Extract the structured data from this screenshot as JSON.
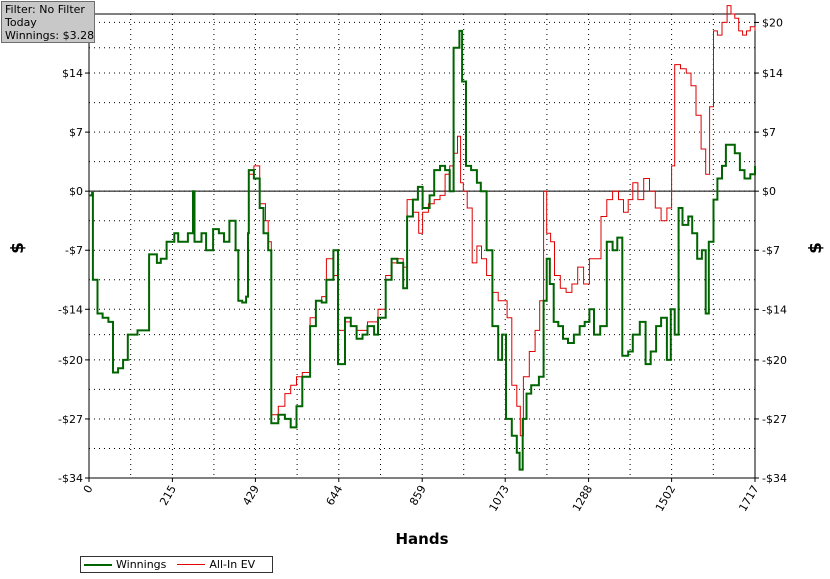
{
  "filter_box": {
    "line1": "Filter: No Filter",
    "line2": "Today",
    "line3": "Winnings: $3.28"
  },
  "colors": {
    "winnings": "#006400",
    "allin_ev": "#e00000",
    "grid": "#000000",
    "zero_line": "#000000"
  },
  "chart_data": {
    "type": "line",
    "xlabel": "Hands",
    "ylabel": "$",
    "xlim": [
      0,
      1717
    ],
    "ylim": [
      -34,
      21
    ],
    "x_ticks": [
      0,
      215,
      429,
      644,
      859,
      1073,
      1288,
      1502,
      1717
    ],
    "y_ticks": [
      20,
      14,
      7,
      0,
      -7,
      -14,
      -20,
      -27,
      -34
    ],
    "y_tick_labels": [
      "$20",
      "$14",
      "$7",
      "$0",
      "-$7",
      "-$14",
      "-$20",
      "-$27",
      "-$34"
    ],
    "grid": true,
    "legend_position": "bottom-left",
    "series": [
      {
        "name": "Winnings",
        "points": [
          [
            0,
            -0.5
          ],
          [
            8,
            -0.2
          ],
          [
            10,
            -10.5
          ],
          [
            22,
            -14.5
          ],
          [
            35,
            -15
          ],
          [
            50,
            -15.5
          ],
          [
            62,
            -21.5
          ],
          [
            75,
            -21
          ],
          [
            88,
            -20
          ],
          [
            100,
            -17
          ],
          [
            118,
            -17
          ],
          [
            125,
            -16.5
          ],
          [
            155,
            -7.5
          ],
          [
            175,
            -8.5
          ],
          [
            185,
            -8
          ],
          [
            200,
            -6
          ],
          [
            220,
            -5
          ],
          [
            230,
            -6
          ],
          [
            255,
            -5
          ],
          [
            268,
            0
          ],
          [
            272,
            -6
          ],
          [
            290,
            -5
          ],
          [
            302,
            -7
          ],
          [
            320,
            -4.5
          ],
          [
            335,
            -5
          ],
          [
            348,
            -6
          ],
          [
            362,
            -3.5
          ],
          [
            378,
            -7
          ],
          [
            385,
            -13
          ],
          [
            395,
            -13.2
          ],
          [
            405,
            -12.5
          ],
          [
            410,
            -5
          ],
          [
            412,
            2.5
          ],
          [
            425,
            1.5
          ],
          [
            440,
            -2
          ],
          [
            450,
            -5
          ],
          [
            462,
            -7
          ],
          [
            470,
            -27.5
          ],
          [
            488,
            -26.5
          ],
          [
            505,
            -27
          ],
          [
            520,
            -28
          ],
          [
            535,
            -25.5
          ],
          [
            550,
            -22
          ],
          [
            570,
            -16
          ],
          [
            585,
            -13
          ],
          [
            600,
            -13.2
          ],
          [
            612,
            -10.5
          ],
          [
            630,
            -7
          ],
          [
            642,
            -20.5
          ],
          [
            660,
            -15
          ],
          [
            675,
            -16
          ],
          [
            690,
            -17.5
          ],
          [
            705,
            -17
          ],
          [
            718,
            -16
          ],
          [
            735,
            -17
          ],
          [
            745,
            -15
          ],
          [
            765,
            -10.5
          ],
          [
            780,
            -8
          ],
          [
            795,
            -8.5
          ],
          [
            810,
            -11.5
          ],
          [
            820,
            -3
          ],
          [
            835,
            -1
          ],
          [
            848,
            0.5
          ],
          [
            860,
            -2
          ],
          [
            878,
            -0.5
          ],
          [
            890,
            2.5
          ],
          [
            905,
            3
          ],
          [
            918,
            2.5
          ],
          [
            930,
            0
          ],
          [
            940,
            17
          ],
          [
            955,
            19
          ],
          [
            962,
            13
          ],
          [
            972,
            3
          ],
          [
            985,
            2.5
          ],
          [
            1000,
            1
          ],
          [
            1010,
            0
          ],
          [
            1025,
            -7
          ],
          [
            1040,
            -16
          ],
          [
            1055,
            -20
          ],
          [
            1065,
            -17
          ],
          [
            1075,
            -27
          ],
          [
            1090,
            -29
          ],
          [
            1103,
            -31
          ],
          [
            1110,
            -33
          ],
          [
            1118,
            -27
          ],
          [
            1128,
            -24
          ],
          [
            1140,
            -23
          ],
          [
            1160,
            -22
          ],
          [
            1172,
            -13
          ],
          [
            1180,
            -8
          ],
          [
            1188,
            -11
          ],
          [
            1198,
            -15.5
          ],
          [
            1210,
            -16
          ],
          [
            1222,
            -17.5
          ],
          [
            1235,
            -18
          ],
          [
            1250,
            -17
          ],
          [
            1265,
            -16
          ],
          [
            1278,
            -15.5
          ],
          [
            1290,
            -14
          ],
          [
            1302,
            -17
          ],
          [
            1318,
            -16
          ],
          [
            1335,
            -6
          ],
          [
            1350,
            -7
          ],
          [
            1362,
            -5.5
          ],
          [
            1375,
            -19.5
          ],
          [
            1390,
            -19
          ],
          [
            1402,
            -17
          ],
          [
            1420,
            -15.5
          ],
          [
            1435,
            -20.5
          ],
          [
            1448,
            -19
          ],
          [
            1462,
            -16
          ],
          [
            1475,
            -15
          ],
          [
            1490,
            -20
          ],
          [
            1500,
            -14
          ],
          [
            1510,
            -17
          ],
          [
            1520,
            -2
          ],
          [
            1530,
            -4
          ],
          [
            1545,
            -3
          ],
          [
            1555,
            -5
          ],
          [
            1568,
            -8
          ],
          [
            1580,
            -7
          ],
          [
            1590,
            -14.5
          ],
          [
            1598,
            -6
          ],
          [
            1610,
            -1
          ],
          [
            1620,
            1.5
          ],
          [
            1632,
            3
          ],
          [
            1642,
            5.5
          ],
          [
            1655,
            5.5
          ],
          [
            1665,
            4.5
          ],
          [
            1678,
            2.5
          ],
          [
            1690,
            1.5
          ],
          [
            1705,
            2
          ],
          [
            1717,
            3
          ]
        ]
      },
      {
        "name": "All-In EV",
        "points": [
          [
            410,
            2
          ],
          [
            425,
            3
          ],
          [
            440,
            -1.5
          ],
          [
            455,
            -3.5
          ],
          [
            462,
            -6
          ],
          [
            470,
            -26.5
          ],
          [
            488,
            -25.5
          ],
          [
            505,
            -24
          ],
          [
            520,
            -23
          ],
          [
            535,
            -22
          ],
          [
            550,
            -21.5
          ],
          [
            570,
            -15
          ],
          [
            585,
            -13
          ],
          [
            600,
            -12.5
          ],
          [
            612,
            -8
          ],
          [
            630,
            -10
          ],
          [
            642,
            -16.5
          ],
          [
            660,
            -15.5
          ],
          [
            675,
            -16
          ],
          [
            690,
            -16.5
          ],
          [
            705,
            -16.5
          ],
          [
            718,
            -15.5
          ],
          [
            735,
            -15.5
          ],
          [
            745,
            -14
          ],
          [
            765,
            -10
          ],
          [
            780,
            -8.5
          ],
          [
            795,
            -8
          ],
          [
            810,
            -9
          ],
          [
            820,
            -1
          ],
          [
            835,
            -2.5
          ],
          [
            850,
            -5
          ],
          [
            860,
            -2.5
          ],
          [
            875,
            -1.5
          ],
          [
            890,
            -1
          ],
          [
            905,
            -0.5
          ],
          [
            918,
            2
          ],
          [
            930,
            3
          ],
          [
            940,
            4.5
          ],
          [
            950,
            6.5
          ],
          [
            958,
            1
          ],
          [
            965,
            0
          ],
          [
            975,
            -2
          ],
          [
            988,
            -8.5
          ],
          [
            1000,
            -6.5
          ],
          [
            1012,
            -8
          ],
          [
            1025,
            -10
          ],
          [
            1040,
            -12
          ],
          [
            1055,
            -13
          ],
          [
            1065,
            -13
          ],
          [
            1078,
            -15
          ],
          [
            1090,
            -23
          ],
          [
            1103,
            -25.5
          ],
          [
            1112,
            -29
          ],
          [
            1120,
            -22
          ],
          [
            1135,
            -19
          ],
          [
            1150,
            -16.5
          ],
          [
            1162,
            -13
          ],
          [
            1172,
            0
          ],
          [
            1180,
            -5
          ],
          [
            1190,
            -6
          ],
          [
            1200,
            -10
          ],
          [
            1215,
            -11.5
          ],
          [
            1230,
            -12
          ],
          [
            1245,
            -11
          ],
          [
            1260,
            -9
          ],
          [
            1275,
            -11
          ],
          [
            1290,
            -8
          ],
          [
            1305,
            -8
          ],
          [
            1320,
            -3
          ],
          [
            1335,
            -1
          ],
          [
            1350,
            0
          ],
          [
            1365,
            -1
          ],
          [
            1378,
            -2.5
          ],
          [
            1390,
            -1
          ],
          [
            1402,
            1
          ],
          [
            1415,
            -1
          ],
          [
            1430,
            1.5
          ],
          [
            1445,
            0
          ],
          [
            1460,
            -2
          ],
          [
            1475,
            -3.5
          ],
          [
            1490,
            -2
          ],
          [
            1502,
            3
          ],
          [
            1510,
            15
          ],
          [
            1525,
            14.5
          ],
          [
            1540,
            14
          ],
          [
            1552,
            12.5
          ],
          [
            1565,
            9
          ],
          [
            1578,
            5
          ],
          [
            1590,
            2
          ],
          [
            1600,
            10
          ],
          [
            1610,
            19
          ],
          [
            1620,
            18.5
          ],
          [
            1632,
            20
          ],
          [
            1645,
            22
          ],
          [
            1655,
            21
          ],
          [
            1665,
            20.5
          ],
          [
            1675,
            19
          ],
          [
            1685,
            18.5
          ],
          [
            1695,
            19
          ],
          [
            1705,
            19.5
          ],
          [
            1717,
            19
          ]
        ]
      }
    ]
  },
  "legend": {
    "items": [
      {
        "label": "Winnings",
        "color": "#006400"
      },
      {
        "label": "All-In EV",
        "color": "#e00000"
      }
    ]
  }
}
